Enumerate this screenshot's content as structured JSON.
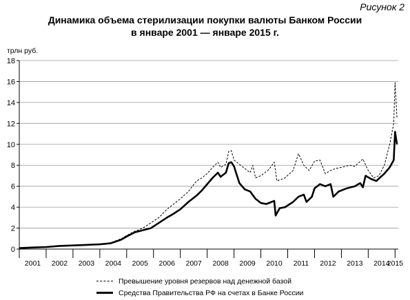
{
  "figure_label": "Рисунок 2",
  "title": "Динамика объема стерилизации покупки валюты Банком России",
  "subtitle": "в январе 2001 — январе 2015 г.",
  "chart_data": {
    "type": "line",
    "ylabel": "трлн руб.",
    "xlabel": "",
    "ylim": [
      0,
      18
    ],
    "yticks": [
      0,
      2,
      4,
      6,
      8,
      10,
      12,
      14,
      16,
      18
    ],
    "xlim": [
      2001.0,
      2015.12
    ],
    "xticks": [
      "2001",
      "2002",
      "2003",
      "2004",
      "2005",
      "2006",
      "2007",
      "2008",
      "2009",
      "2010",
      "2011",
      "2012",
      "2013",
      "2014",
      "2015"
    ],
    "grid": "horizontal",
    "legend_position": "bottom",
    "series": [
      {
        "name": "Превышение уровня резервов над денежной базой",
        "style": "dashed",
        "color": "#000000",
        "points": [
          [
            2001.0,
            0.1
          ],
          [
            2001.5,
            0.2
          ],
          [
            2002.0,
            0.2
          ],
          [
            2002.5,
            0.3
          ],
          [
            2003.0,
            0.35
          ],
          [
            2003.5,
            0.4
          ],
          [
            2004.0,
            0.45
          ],
          [
            2004.4,
            0.6
          ],
          [
            2004.8,
            1.0
          ],
          [
            2005.0,
            1.3
          ],
          [
            2005.3,
            1.7
          ],
          [
            2005.6,
            2.0
          ],
          [
            2005.9,
            2.5
          ],
          [
            2006.2,
            3.0
          ],
          [
            2006.5,
            3.8
          ],
          [
            2006.7,
            4.2
          ],
          [
            2007.0,
            4.8
          ],
          [
            2007.3,
            5.5
          ],
          [
            2007.6,
            6.5
          ],
          [
            2007.8,
            6.8
          ],
          [
            2008.0,
            7.2
          ],
          [
            2008.2,
            7.8
          ],
          [
            2008.4,
            8.3
          ],
          [
            2008.5,
            7.8
          ],
          [
            2008.7,
            8.1
          ],
          [
            2008.8,
            9.3
          ],
          [
            2008.9,
            9.4
          ],
          [
            2009.0,
            8.5
          ],
          [
            2009.2,
            8.1
          ],
          [
            2009.4,
            7.7
          ],
          [
            2009.6,
            7.3
          ],
          [
            2009.7,
            8.0
          ],
          [
            2009.8,
            6.8
          ],
          [
            2010.0,
            7.0
          ],
          [
            2010.3,
            7.6
          ],
          [
            2010.5,
            8.3
          ],
          [
            2010.6,
            6.5
          ],
          [
            2010.9,
            6.8
          ],
          [
            2011.2,
            7.5
          ],
          [
            2011.4,
            9.1
          ],
          [
            2011.6,
            8.0
          ],
          [
            2011.8,
            7.5
          ],
          [
            2012.0,
            8.4
          ],
          [
            2012.2,
            8.5
          ],
          [
            2012.4,
            7.2
          ],
          [
            2012.6,
            7.5
          ],
          [
            2012.8,
            7.7
          ],
          [
            2013.0,
            7.8
          ],
          [
            2013.3,
            8.0
          ],
          [
            2013.5,
            7.9
          ],
          [
            2013.8,
            8.6
          ],
          [
            2014.0,
            7.5
          ],
          [
            2014.2,
            6.8
          ],
          [
            2014.4,
            7.0
          ],
          [
            2014.6,
            8.0
          ],
          [
            2014.8,
            10.0
          ],
          [
            2014.95,
            12.0
          ],
          [
            2015.0,
            15.9
          ],
          [
            2015.07,
            12.5
          ]
        ]
      },
      {
        "name": "Средства Правительства РФ на счетах в Банке России",
        "style": "solid",
        "color": "#000000",
        "points": [
          [
            2001.0,
            0.1
          ],
          [
            2001.5,
            0.15
          ],
          [
            2002.0,
            0.2
          ],
          [
            2002.5,
            0.3
          ],
          [
            2003.0,
            0.35
          ],
          [
            2003.5,
            0.4
          ],
          [
            2004.0,
            0.45
          ],
          [
            2004.4,
            0.55
          ],
          [
            2004.8,
            0.9
          ],
          [
            2005.0,
            1.2
          ],
          [
            2005.3,
            1.6
          ],
          [
            2005.6,
            1.8
          ],
          [
            2005.9,
            2.0
          ],
          [
            2006.2,
            2.5
          ],
          [
            2006.5,
            3.0
          ],
          [
            2006.7,
            3.3
          ],
          [
            2007.0,
            3.8
          ],
          [
            2007.3,
            4.5
          ],
          [
            2007.6,
            5.1
          ],
          [
            2007.8,
            5.6
          ],
          [
            2008.0,
            6.2
          ],
          [
            2008.2,
            6.8
          ],
          [
            2008.4,
            7.3
          ],
          [
            2008.5,
            6.9
          ],
          [
            2008.7,
            7.3
          ],
          [
            2008.8,
            8.2
          ],
          [
            2008.9,
            8.3
          ],
          [
            2009.0,
            7.9
          ],
          [
            2009.2,
            6.3
          ],
          [
            2009.4,
            5.7
          ],
          [
            2009.6,
            5.5
          ],
          [
            2009.8,
            4.8
          ],
          [
            2010.0,
            4.4
          ],
          [
            2010.2,
            4.3
          ],
          [
            2010.4,
            4.5
          ],
          [
            2010.5,
            4.6
          ],
          [
            2010.55,
            3.2
          ],
          [
            2010.7,
            3.9
          ],
          [
            2010.9,
            4.0
          ],
          [
            2011.2,
            4.5
          ],
          [
            2011.4,
            5.0
          ],
          [
            2011.6,
            5.2
          ],
          [
            2011.7,
            4.5
          ],
          [
            2011.9,
            5.0
          ],
          [
            2012.0,
            5.8
          ],
          [
            2012.2,
            6.2
          ],
          [
            2012.4,
            6.0
          ],
          [
            2012.6,
            6.2
          ],
          [
            2012.7,
            5.0
          ],
          [
            2012.9,
            5.5
          ],
          [
            2013.2,
            5.8
          ],
          [
            2013.5,
            6.0
          ],
          [
            2013.7,
            6.3
          ],
          [
            2013.8,
            5.9
          ],
          [
            2013.9,
            7.0
          ],
          [
            2014.1,
            6.7
          ],
          [
            2014.3,
            6.5
          ],
          [
            2014.6,
            7.2
          ],
          [
            2014.8,
            7.8
          ],
          [
            2014.95,
            8.5
          ],
          [
            2015.0,
            11.2
          ],
          [
            2015.07,
            10.0
          ]
        ]
      }
    ]
  }
}
